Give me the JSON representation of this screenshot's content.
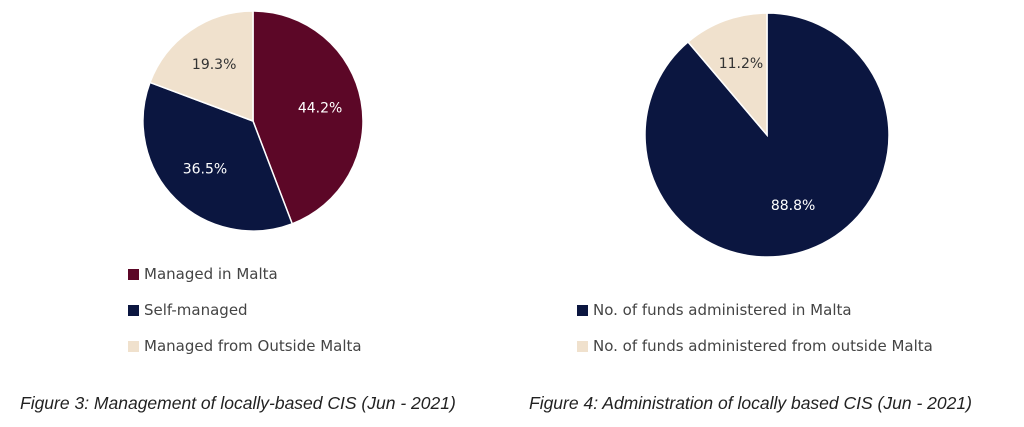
{
  "chart_data": [
    {
      "type": "pie",
      "title": "",
      "caption": "Figure 3: Management of locally-based CIS (Jun - 2021)",
      "start": "12 o'clock",
      "direction": "clockwise",
      "slices": [
        {
          "name": "Managed in Malta",
          "value": 44.2,
          "label": "44.2%",
          "color": "#5c0727",
          "text_color": "#ffffff"
        },
        {
          "name": "Self-managed",
          "value": 36.5,
          "label": "36.5%",
          "color": "#0b1640",
          "text_color": "#ffffff"
        },
        {
          "name": "Managed from Outside Malta",
          "value": 19.3,
          "label": "19.3%",
          "color": "#f0e1cd",
          "text_color": "#333333"
        }
      ],
      "legend": {
        "position": "bottom"
      }
    },
    {
      "type": "pie",
      "title": "",
      "caption": "Figure 4: Administration of locally based CIS (Jun - 2021)",
      "start": "12 o'clock",
      "direction": "clockwise",
      "slices": [
        {
          "name": "No. of funds administered in Malta",
          "value": 88.8,
          "label": "88.8%",
          "color": "#0b1640",
          "text_color": "#ffffff"
        },
        {
          "name": "No. of funds administered from outside Malta",
          "value": 11.2,
          "label": "11.2%",
          "color": "#f0e1cd",
          "text_color": "#333333"
        }
      ],
      "legend": {
        "position": "bottom"
      }
    }
  ]
}
